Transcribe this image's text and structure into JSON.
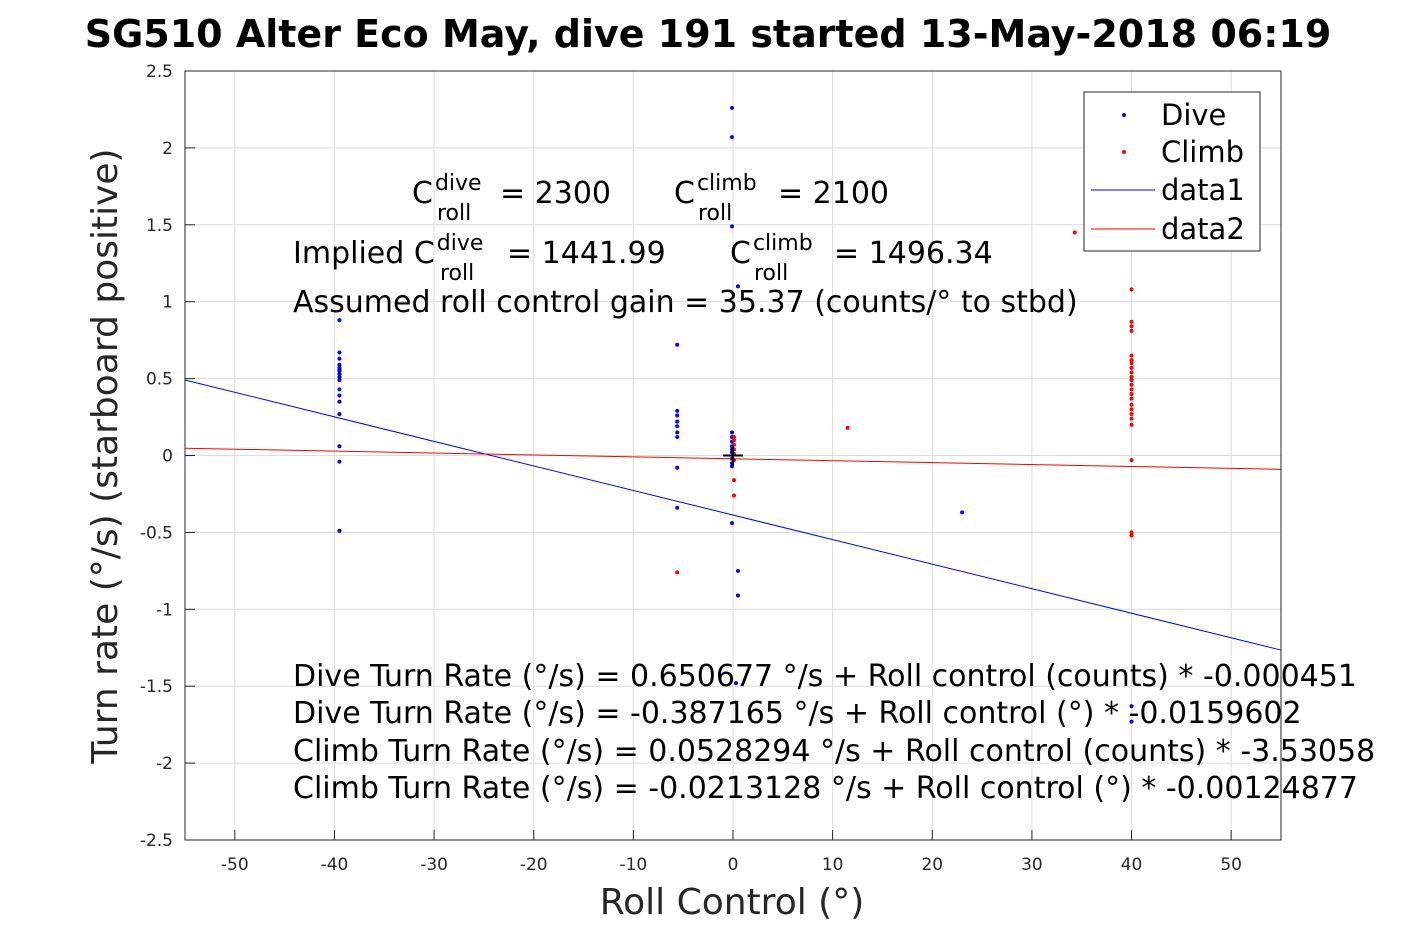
{
  "title": "SG510 Alter Eco May, dive 191 started 13-May-2018 06:19",
  "chart_data": {
    "type": "scatter",
    "title": "SG510 Alter Eco May, dive 191 started 13-May-2018 06:19",
    "xlabel": "Roll Control (°)",
    "ylabel": "Turn rate (°/s) (starboard positive)",
    "xlim": [
      -55,
      55
    ],
    "ylim": [
      -2.5,
      2.5
    ],
    "xticks": [
      -50,
      -40,
      -30,
      -20,
      -10,
      0,
      10,
      20,
      30,
      40,
      50
    ],
    "yticks": [
      -2.5,
      -2,
      -1.5,
      -1,
      -0.5,
      0,
      0.5,
      1,
      1.5,
      2,
      2.5
    ],
    "xtick_labels": [
      "-50",
      "-40",
      "-30",
      "-20",
      "-10",
      "0",
      "10",
      "20",
      "30",
      "40",
      "50"
    ],
    "ytick_labels": [
      "-2.5",
      "-2",
      "-1.5",
      "-1",
      "-0.5",
      "0",
      "0.5",
      "1",
      "1.5",
      "2",
      "2.5"
    ],
    "grid": true,
    "legend_position": "top-right",
    "series": [
      {
        "name": "Dive",
        "kind": "points",
        "color": "#0000ff",
        "points": [
          [
            -39.5,
            0.88
          ],
          [
            -39.5,
            0.67
          ],
          [
            -39.5,
            0.63
          ],
          [
            -39.5,
            0.59
          ],
          [
            -39.5,
            0.57
          ],
          [
            -39.5,
            0.56
          ],
          [
            -39.5,
            0.55
          ],
          [
            -39.5,
            0.53
          ],
          [
            -39.5,
            0.51
          ],
          [
            -39.5,
            0.49
          ],
          [
            -39.5,
            0.43
          ],
          [
            -39.5,
            0.39
          ],
          [
            -39.5,
            0.35
          ],
          [
            -39.5,
            0.27
          ],
          [
            -39.5,
            0.06
          ],
          [
            -39.5,
            -0.04
          ],
          [
            -39.5,
            -0.49
          ],
          [
            -5.6,
            0.72
          ],
          [
            -5.6,
            0.29
          ],
          [
            -5.6,
            0.26
          ],
          [
            -5.6,
            0.22
          ],
          [
            -5.6,
            0.19
          ],
          [
            -5.6,
            0.15
          ],
          [
            -5.6,
            0.12
          ],
          [
            -5.6,
            -0.08
          ],
          [
            -5.6,
            -0.34
          ],
          [
            -0.1,
            2.26
          ],
          [
            -0.1,
            2.07
          ],
          [
            -0.1,
            1.49
          ],
          [
            0.5,
            1.1
          ],
          [
            -0.1,
            0.15
          ],
          [
            -0.1,
            0.12
          ],
          [
            -0.1,
            0.09
          ],
          [
            -0.1,
            0.06
          ],
          [
            -0.1,
            0.04
          ],
          [
            -0.1,
            0.02
          ],
          [
            -0.1,
            -0.02
          ],
          [
            -0.1,
            -0.05
          ],
          [
            -0.1,
            -0.07
          ],
          [
            -0.1,
            -0.44
          ],
          [
            0.5,
            -0.75
          ],
          [
            0.5,
            -0.91
          ],
          [
            0.3,
            -1.48
          ],
          [
            23.0,
            -0.37
          ],
          [
            40.0,
            -1.63
          ],
          [
            40.0,
            -1.73
          ]
        ]
      },
      {
        "name": "Climb",
        "kind": "points",
        "color": "#ff0000",
        "points": [
          [
            34.3,
            1.45
          ],
          [
            40.0,
            1.08
          ],
          [
            40.0,
            0.87
          ],
          [
            40.0,
            0.84
          ],
          [
            40.0,
            0.81
          ],
          [
            40.0,
            0.65
          ],
          [
            40.0,
            0.62
          ],
          [
            40.0,
            0.6
          ],
          [
            40.0,
            0.57
          ],
          [
            40.0,
            0.54
          ],
          [
            40.0,
            0.51
          ],
          [
            40.0,
            0.49
          ],
          [
            40.0,
            0.46
          ],
          [
            40.0,
            0.43
          ],
          [
            40.0,
            0.4
          ],
          [
            40.0,
            0.37
          ],
          [
            40.0,
            0.33
          ],
          [
            40.0,
            0.3
          ],
          [
            40.0,
            0.27
          ],
          [
            40.0,
            0.24
          ],
          [
            40.0,
            0.2
          ],
          [
            40.0,
            -0.03
          ],
          [
            40.0,
            -0.5
          ],
          [
            40.0,
            -0.52
          ],
          [
            11.5,
            0.18
          ],
          [
            0.1,
            0.12
          ],
          [
            0.1,
            0.1
          ],
          [
            0.1,
            0.07
          ],
          [
            0.1,
            0.04
          ],
          [
            0.1,
            0.01
          ],
          [
            0.1,
            -0.03
          ],
          [
            0.1,
            -0.16
          ],
          [
            0.1,
            -0.26
          ],
          [
            -5.6,
            -0.76
          ]
        ]
      },
      {
        "name": "data1",
        "kind": "line",
        "color": "#0000ff",
        "intercept": -0.387165,
        "slope": -0.0159602
      },
      {
        "name": "data2",
        "kind": "line",
        "color": "#ff0000",
        "intercept": -0.0213128,
        "slope": -0.00124877
      }
    ],
    "origin_marker": {
      "x": 0,
      "y": 0,
      "symbol": "+",
      "color": "#000000"
    },
    "annotations": {
      "c_roll_dive": {
        "base": "C",
        "sup": "dive",
        "sub": "roll",
        "value": "= 2300"
      },
      "c_roll_climb": {
        "base": "C",
        "sup": "climb",
        "sub": "roll",
        "value": "= 2100"
      },
      "implied_dive": {
        "prefix": "Implied C",
        "sup": "dive",
        "sub": "roll",
        "value": "= 1441.99"
      },
      "implied_climb": {
        "base": "C",
        "sup": "climb",
        "sub": "roll",
        "value": "= 1496.34"
      },
      "gain": "Assumed roll control gain = 35.37 (counts/° to stbd)",
      "fit_lines": [
        "Dive Turn Rate (°/s) = 0.650677 °/s + Roll control (counts) * -0.000451",
        "Dive Turn Rate (°/s) = -0.387165 °/s + Roll control (°) * -0.0159602",
        "Climb Turn Rate (°/s) = 0.0528294 °/s + Roll control (counts) * -3.53058",
        "Climb Turn Rate (°/s) = -0.0213128 °/s + Roll control (°) * -0.00124877"
      ]
    }
  }
}
